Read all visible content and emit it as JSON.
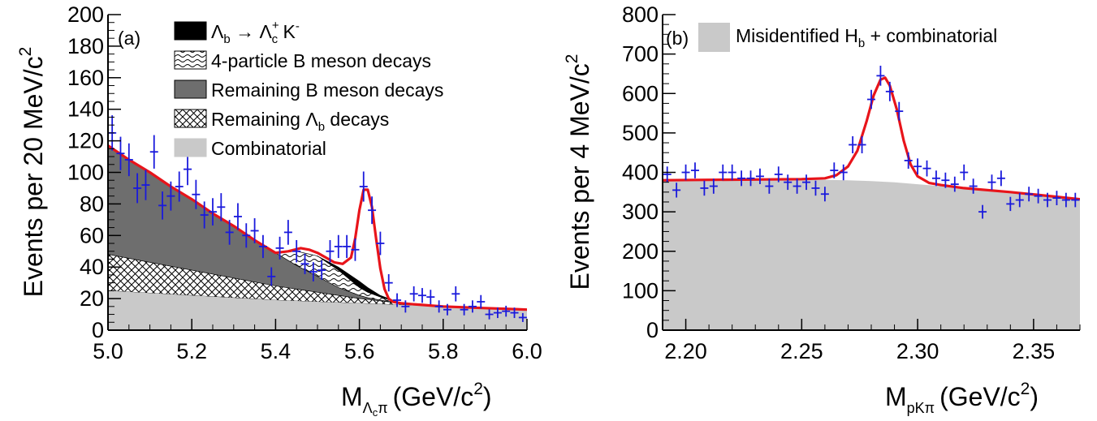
{
  "chart_data": [
    {
      "type": "area",
      "panel_label": "(a)",
      "ylabel": "Events per 20 MeV/c",
      "ylabel_sup": "2",
      "xlabel_main": "M",
      "xlabel_sub": "Λcπ",
      "xlabel_sub_c": "c",
      "xlabel_sub_pi": "π",
      "xlabel_unit": "(GeV/c",
      "xlabel_unit_sup": "2",
      "xlabel_close": ")",
      "xlim": [
        5.0,
        6.0
      ],
      "ylim": [
        0,
        200
      ],
      "xticks": [
        5.0,
        5.2,
        5.4,
        5.6,
        5.8,
        6.0
      ],
      "xtick_labels": [
        "5.0",
        "5.2",
        "5.4",
        "5.6",
        "5.8",
        "6.0"
      ],
      "yticks": [
        0,
        20,
        40,
        60,
        80,
        100,
        120,
        140,
        160,
        180,
        200
      ],
      "ytick_labels": [
        "0",
        "20",
        "40",
        "60",
        "80",
        "100",
        "120",
        "140",
        "160",
        "180",
        "200"
      ],
      "legend": [
        {
          "key": "lambdab_to_lambdac_k",
          "pattern": "solid-black",
          "label": "Λ",
          "sub": "b",
          "mid": " → Λ",
          "sup2": "+",
          "sub2": "c",
          "tail": " K",
          "sup3": "-"
        },
        {
          "key": "four_particle_b",
          "pattern": "wavy",
          "label": "4-particle B meson decays"
        },
        {
          "key": "remaining_b",
          "pattern": "solid-dark-gray",
          "label": "Remaining B meson decays"
        },
        {
          "key": "remaining_lambdab",
          "pattern": "crosshatch",
          "label": "Remaining Λ",
          "sub": "b",
          "tail": " decays"
        },
        {
          "key": "combinatorial",
          "pattern": "solid-light-gray",
          "label": "Combinatorial"
        }
      ],
      "colors": {
        "fit": "#e8141a",
        "data": "#1a1adc",
        "combinatorial": "#c9c9c9",
        "remaining_b": "#6e6e6e",
        "signal": "#000000"
      },
      "data_points": {
        "x": [
          5.01,
          5.03,
          5.05,
          5.07,
          5.09,
          5.11,
          5.13,
          5.15,
          5.17,
          5.19,
          5.21,
          5.23,
          5.25,
          5.27,
          5.29,
          5.31,
          5.33,
          5.35,
          5.37,
          5.39,
          5.41,
          5.43,
          5.45,
          5.47,
          5.49,
          5.51,
          5.53,
          5.55,
          5.57,
          5.59,
          5.61,
          5.63,
          5.65,
          5.67,
          5.69,
          5.71,
          5.73,
          5.75,
          5.77,
          5.79,
          5.81,
          5.83,
          5.85,
          5.87,
          5.89,
          5.91,
          5.93,
          5.95,
          5.97,
          5.99
        ],
        "y": [
          125,
          112,
          108,
          90,
          92,
          113,
          79,
          85,
          91,
          102,
          86,
          73,
          75,
          78,
          62,
          72,
          60,
          63,
          53,
          34,
          52,
          62,
          50,
          42,
          37,
          38,
          50,
          53,
          53,
          51,
          91,
          76,
          55,
          30,
          19,
          15,
          23,
          22,
          21,
          15,
          13,
          23,
          13,
          15,
          18,
          10,
          11,
          12,
          11,
          8
        ]
      },
      "components": {
        "x": [
          5.0,
          5.1,
          5.2,
          5.3,
          5.4,
          5.45,
          5.5,
          5.55,
          5.6,
          5.62,
          5.65,
          5.7,
          5.8,
          5.9,
          6.0
        ],
        "combinatorial": [
          25,
          23.5,
          22,
          20.5,
          19,
          18.5,
          18,
          17.5,
          17,
          16.8,
          16.5,
          16,
          15,
          14,
          13
        ],
        "remaining_lambdab": [
          48,
          43,
          38,
          33,
          28,
          26,
          24,
          22,
          20,
          19.5,
          18.5,
          17,
          15,
          14,
          13
        ],
        "remaining_b": [
          117,
          100,
          83,
          66,
          49,
          41,
          34,
          27,
          22,
          20.5,
          19,
          17,
          15,
          14,
          13
        ],
        "four_particle_b": [
          117,
          100,
          83,
          66,
          49,
          50,
          47,
          38,
          27,
          24,
          21,
          17,
          15,
          14,
          13
        ],
        "signal_lambdab": [
          117,
          100,
          83,
          66,
          49,
          50,
          47,
          40,
          31,
          27,
          22,
          17,
          15,
          14,
          13
        ]
      },
      "fit": {
        "x": [
          5.0,
          5.05,
          5.1,
          5.15,
          5.2,
          5.25,
          5.3,
          5.35,
          5.4,
          5.43,
          5.46,
          5.48,
          5.5,
          5.52,
          5.54,
          5.56,
          5.58,
          5.59,
          5.6,
          5.61,
          5.62,
          5.63,
          5.64,
          5.65,
          5.66,
          5.67,
          5.68,
          5.7,
          5.75,
          5.8,
          5.85,
          5.9,
          5.95,
          6.0
        ],
        "y": [
          117,
          108,
          100,
          91,
          83,
          74,
          66,
          57,
          49,
          50,
          52,
          51,
          49,
          46,
          43,
          42,
          46,
          58,
          76,
          89,
          89,
          78,
          58,
          39,
          26,
          20,
          18,
          17,
          16,
          15,
          14.5,
          14,
          13.5,
          13
        ]
      }
    },
    {
      "type": "area",
      "panel_label": "(b)",
      "ylabel": "Events per 4 MeV/c",
      "ylabel_sup": "2",
      "xlabel_main": "M",
      "xlabel_sub": "pKπ",
      "xlabel_unit": "(GeV/c",
      "xlabel_unit_sup": "2",
      "xlabel_close": ")",
      "xlim": [
        2.19,
        2.37
      ],
      "ylim": [
        0,
        800
      ],
      "xticks": [
        2.2,
        2.25,
        2.3,
        2.35
      ],
      "xtick_labels": [
        "2.20",
        "2.25",
        "2.30",
        "2.35"
      ],
      "yticks": [
        0,
        100,
        200,
        300,
        400,
        500,
        600,
        700,
        800
      ],
      "ytick_labels": [
        "0",
        "100",
        "200",
        "300",
        "400",
        "500",
        "600",
        "700",
        "800"
      ],
      "legend": [
        {
          "key": "misid_comb",
          "pattern": "solid-light-gray",
          "label": "Misidentified H",
          "sub": "b",
          "tail": " + combinatorial"
        }
      ],
      "colors": {
        "fit": "#e8141a",
        "data": "#1a1adc",
        "background": "#c9c9c9"
      },
      "data_points": {
        "x": [
          2.192,
          2.196,
          2.2,
          2.204,
          2.208,
          2.212,
          2.216,
          2.22,
          2.224,
          2.228,
          2.232,
          2.236,
          2.24,
          2.244,
          2.248,
          2.252,
          2.256,
          2.26,
          2.264,
          2.268,
          2.272,
          2.276,
          2.28,
          2.284,
          2.288,
          2.292,
          2.296,
          2.3,
          2.304,
          2.308,
          2.312,
          2.316,
          2.32,
          2.324,
          2.328,
          2.332,
          2.336,
          2.34,
          2.344,
          2.348,
          2.352,
          2.356,
          2.36,
          2.364,
          2.368
        ],
        "y": [
          395,
          355,
          400,
          405,
          360,
          365,
          400,
          400,
          385,
          385,
          390,
          365,
          395,
          375,
          365,
          375,
          360,
          345,
          405,
          400,
          470,
          470,
          585,
          645,
          605,
          555,
          430,
          415,
          410,
          385,
          380,
          370,
          400,
          365,
          300,
          375,
          385,
          320,
          330,
          345,
          340,
          330,
          335,
          330,
          330
        ]
      },
      "background": {
        "x": [
          2.19,
          2.21,
          2.23,
          2.25,
          2.26,
          2.27,
          2.28,
          2.29,
          2.3,
          2.32,
          2.34,
          2.36,
          2.37
        ],
        "y": [
          380,
          381,
          382,
          382,
          381,
          380,
          378,
          375,
          370,
          360,
          350,
          338,
          332
        ]
      },
      "fit": {
        "x": [
          2.19,
          2.21,
          2.23,
          2.25,
          2.26,
          2.265,
          2.27,
          2.274,
          2.278,
          2.281,
          2.284,
          2.286,
          2.288,
          2.291,
          2.294,
          2.297,
          2.3,
          2.305,
          2.31,
          2.32,
          2.34,
          2.36,
          2.37
        ],
        "y": [
          380,
          381,
          382,
          383,
          385,
          393,
          415,
          455,
          530,
          595,
          635,
          640,
          620,
          560,
          480,
          420,
          390,
          373,
          368,
          360,
          350,
          338,
          332
        ]
      }
    }
  ]
}
